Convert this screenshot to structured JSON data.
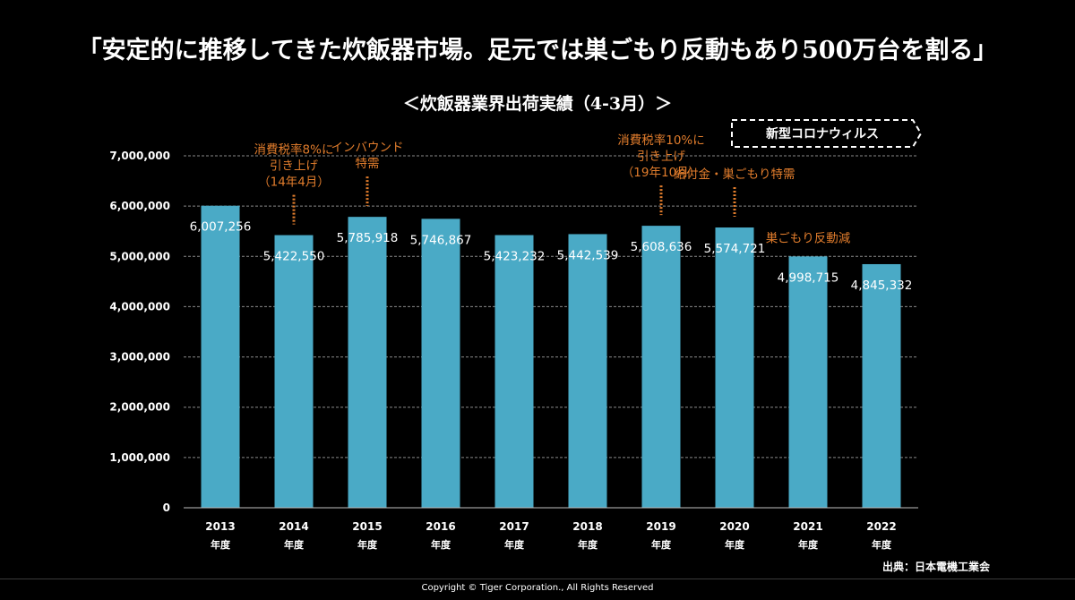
{
  "page": {
    "headline": "「安定的に推移してきた炊飯器市場。足元では巣ごもり反動もあり500万台を割る」",
    "source": "出典：日本電機工業会",
    "copyright": "Copyright © Tiger Corporation., All Rights Reserved",
    "covid_label": "新型コロナウィルス"
  },
  "colors": {
    "background": "#000000",
    "bar": "#4aaac6",
    "annotation": "#e07c2c",
    "text": "#ffffff",
    "grid": "#8a8a8a"
  },
  "chart_data": {
    "type": "bar",
    "title": "＜炊飯器業界出荷実績（4-3月）＞",
    "categories": [
      "2013",
      "2014",
      "2015",
      "2016",
      "2017",
      "2018",
      "2019",
      "2020",
      "2021",
      "2022"
    ],
    "category_suffix": "年度",
    "values": [
      6007256,
      5422550,
      5785918,
      5746867,
      5423232,
      5442539,
      5608636,
      5574721,
      4998715,
      4845332
    ],
    "value_labels": [
      "6,007,256",
      "5,422,550",
      "5,785,918",
      "5,746,867",
      "5,423,232",
      "5,442,539",
      "5,608,636",
      "5,574,721",
      "4,998,715",
      "4,845,332"
    ],
    "ylim": [
      0,
      7000000
    ],
    "yticks": [
      0,
      1000000,
      2000000,
      3000000,
      4000000,
      5000000,
      6000000,
      7000000
    ],
    "ytick_labels": [
      "0",
      "1,000,000",
      "2,000,000",
      "3,000,000",
      "4,000,000",
      "5,000,000",
      "6,000,000",
      "7,000,000"
    ],
    "grid": true,
    "legend": "none",
    "annotations": [
      {
        "category": "2014",
        "lines": [
          "消費税率8%に",
          "引き上げ",
          "（14年4月）"
        ],
        "dotted_marker": true
      },
      {
        "category": "2015",
        "lines": [
          "インバウンド",
          "特需"
        ],
        "dotted_marker": true
      },
      {
        "category": "2019",
        "lines": [
          "消費税率10%に",
          "引き上げ",
          "（19年10月）"
        ],
        "dotted_marker": true
      },
      {
        "category": "2020",
        "lines": [
          "給付金・巣ごもり特需"
        ],
        "dotted_marker": true
      },
      {
        "category": "2021",
        "lines": [
          "巣ごもり反動減"
        ],
        "dotted_marker": false
      }
    ]
  }
}
